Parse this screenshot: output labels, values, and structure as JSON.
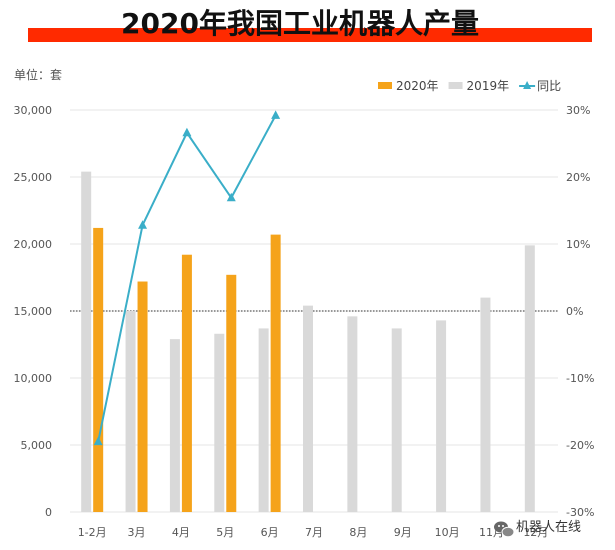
{
  "chart_data": {
    "type": "bar",
    "title": "2020年我国工业机器人产量",
    "unit_label": "单位：套",
    "categories": [
      "1-2月",
      "3月",
      "4月",
      "5月",
      "6月",
      "7月",
      "8月",
      "9月",
      "10月",
      "11月",
      "12月"
    ],
    "series": [
      {
        "name": "2020年",
        "kind": "bar",
        "axis": "left",
        "color": "#f5a31a",
        "values": [
          21200,
          17200,
          19200,
          17700,
          20700,
          null,
          null,
          null,
          null,
          null,
          null
        ]
      },
      {
        "name": "2019年",
        "kind": "bar",
        "axis": "left",
        "color": "#d9d9d9",
        "values": [
          25400,
          15000,
          12900,
          13300,
          13700,
          15400,
          14600,
          13700,
          14300,
          16000,
          19900
        ]
      },
      {
        "name": "同比",
        "kind": "line",
        "axis": "right",
        "color": "#3aaec8",
        "unit": "%",
        "values": [
          -19.5,
          12.8,
          26.6,
          16.9,
          29.2,
          null,
          null,
          null,
          null,
          null,
          null
        ]
      }
    ],
    "y_left": {
      "range": [
        0,
        30000
      ],
      "ticks": [
        "0",
        "5,000",
        "10,000",
        "15,000",
        "20,000",
        "25,000",
        "30,000"
      ]
    },
    "y_right": {
      "range": [
        -30,
        30
      ],
      "ticks": [
        "-30%",
        "-20%",
        "-10%",
        "0%",
        "10%",
        "20%",
        "30%"
      ]
    },
    "grid": true,
    "legend_position": "top-right",
    "zero_line": "dotted"
  },
  "colors": {
    "title_bar": "#ff2a00",
    "gridline": "#e6e6e6",
    "zero_line": "#333333"
  },
  "watermark": {
    "icon": "wechat-icon",
    "text": "机器人在线"
  }
}
